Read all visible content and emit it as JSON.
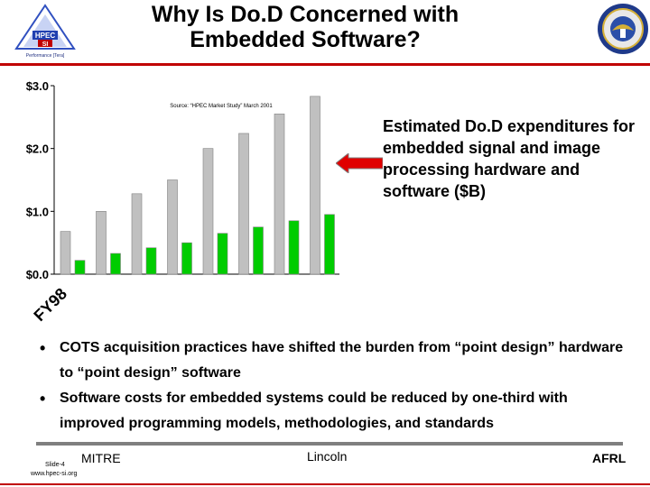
{
  "slide": {
    "title_line1": "Why Is Do.D Concerned with",
    "title_line2": "Embedded Software?"
  },
  "logos": {
    "left_text": "HPEC",
    "left_sub": "SI",
    "left_caption": "Performance [Tera]",
    "right_name": "dod-seal-icon"
  },
  "chart_data": {
    "type": "bar",
    "source_note": "Source: “HPEC Market Study” March 2001",
    "x_start_label": "FY98",
    "yticks": [
      "$3.0",
      "$2.0",
      "$1.0",
      "$0.0"
    ],
    "ylim": [
      0,
      3.0
    ],
    "series": [
      {
        "color": "#c0c0c0",
        "values": [
          0.68,
          1.0,
          1.28,
          1.5,
          2.0,
          2.24,
          2.55,
          2.83
        ]
      },
      {
        "color": "#00cc00",
        "values": [
          0.22,
          0.33,
          0.42,
          0.5,
          0.65,
          0.75,
          0.85,
          0.95
        ]
      }
    ]
  },
  "callout": {
    "text": "Estimated Do.D expenditures for embedded signal and image processing hardware and software ($B)"
  },
  "bullets": [
    "COTS acquisition practices have shifted the burden from “point design” hardware to “point design” software",
    "Software costs for embedded systems could be reduced by one-third with improved programming models, methodologies, and standards"
  ],
  "footer": {
    "mitre": "MITRE",
    "lincoln": "Lincoln",
    "afrl": "AFRL",
    "slide": "Slide-4",
    "url": "www.hpec-si.org"
  }
}
